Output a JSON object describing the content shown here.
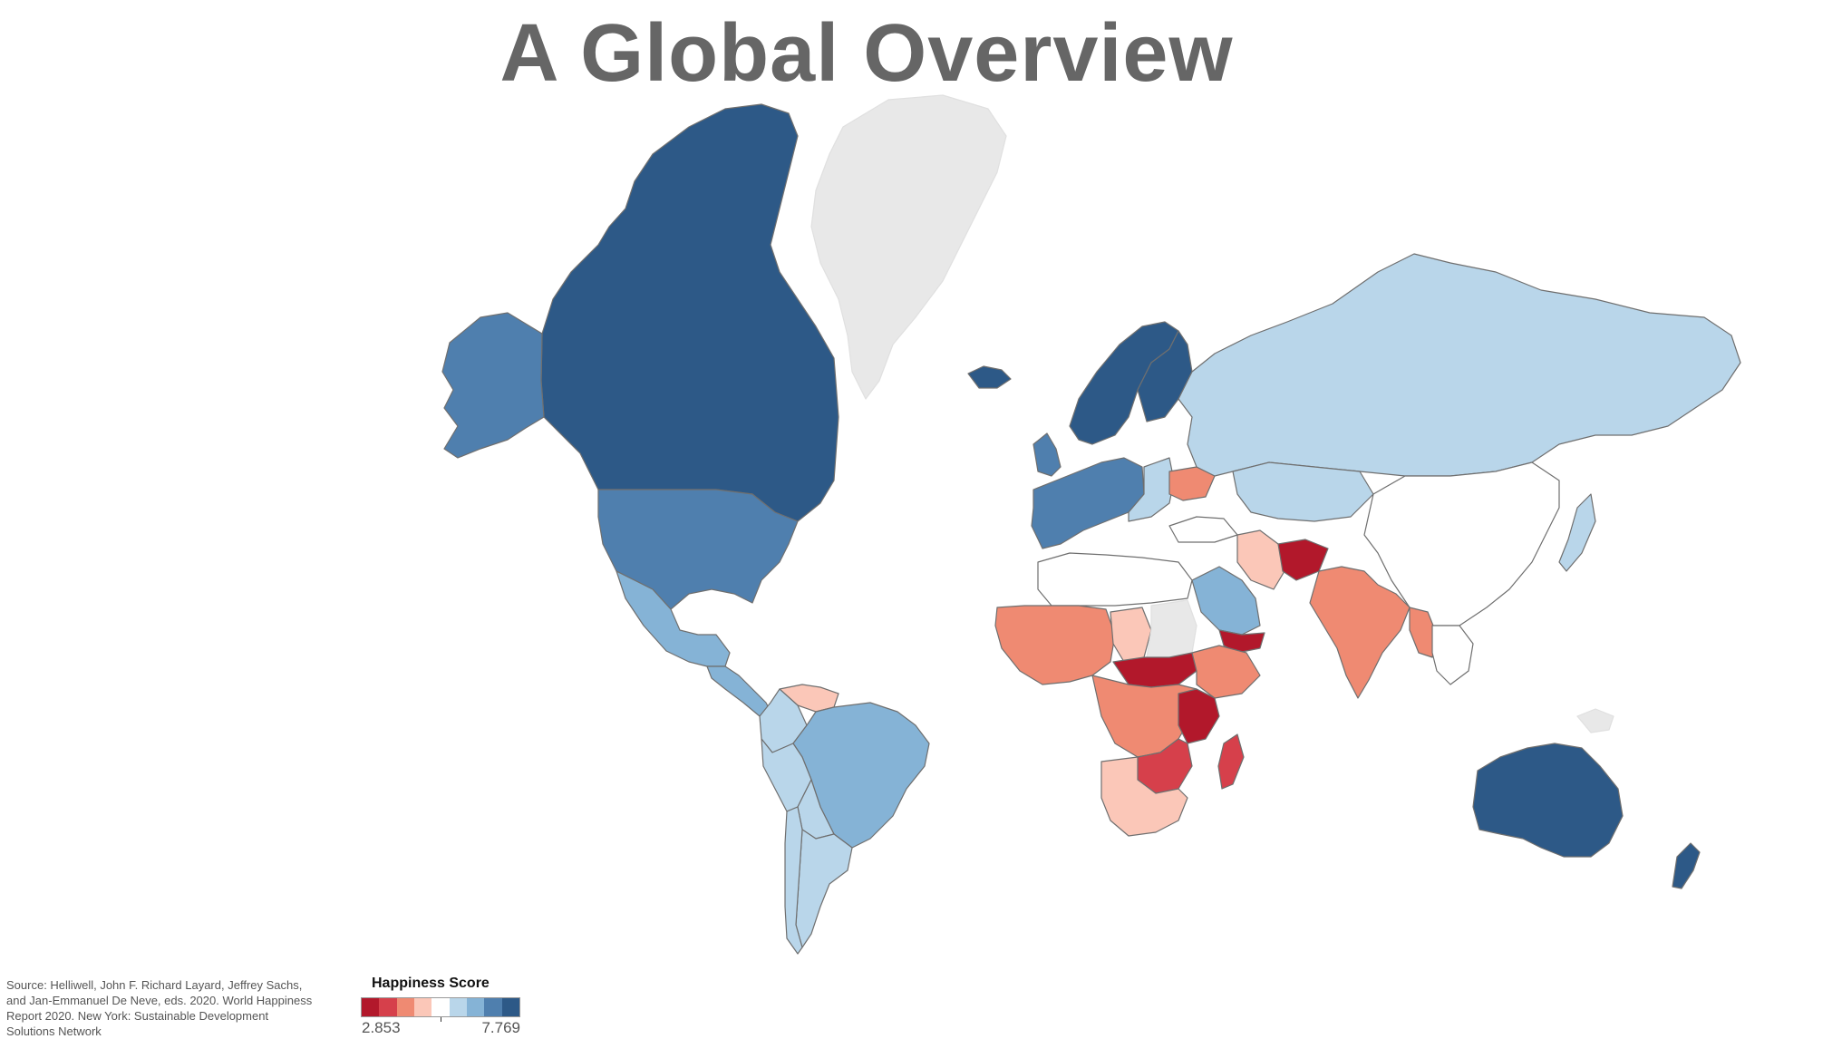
{
  "title": "A Global Overview",
  "source_note": "Source: Helliwell, John F. Richard Layard, Jeffrey Sachs, and Jan-Emmanuel De Neve, eds. 2020. World Happiness Report 2020. New York: Sustainable Development Solutions Network",
  "legend": {
    "title": "Happiness Score",
    "min_label": "2.853",
    "max_label": "7.769",
    "steps": [
      "#b2182b",
      "#d6404b",
      "#ef8a72",
      "#fbc7b8",
      "#ffffff",
      "#b9d6ea",
      "#85b3d6",
      "#4f7fae",
      "#2d5987"
    ]
  },
  "colors": {
    "no_data": "#e8e8e8",
    "border": "#6f6f6f",
    "title": "#666666"
  },
  "regions": [
    {
      "name": "Canada",
      "class": 8
    },
    {
      "name": "Alaska",
      "class": 7
    },
    {
      "name": "United States",
      "class": 7
    },
    {
      "name": "Mexico",
      "class": 6
    },
    {
      "name": "Central America",
      "class": 6
    },
    {
      "name": "Venezuela",
      "class": 3
    },
    {
      "name": "Colombia",
      "class": 5
    },
    {
      "name": "Brazil",
      "class": 6
    },
    {
      "name": "Peru",
      "class": 5
    },
    {
      "name": "Bolivia",
      "class": 5
    },
    {
      "name": "Argentina",
      "class": 5
    },
    {
      "name": "Chile",
      "class": 5
    },
    {
      "name": "Greenland",
      "class": null
    },
    {
      "name": "Iceland",
      "class": 8
    },
    {
      "name": "Scandinavia",
      "class": 8
    },
    {
      "name": "Finland",
      "class": 8
    },
    {
      "name": "United Kingdom",
      "class": 7
    },
    {
      "name": "Western Europe",
      "class": 7
    },
    {
      "name": "Eastern Europe",
      "class": 5
    },
    {
      "name": "Ukraine",
      "class": 2
    },
    {
      "name": "Russia",
      "class": 5
    },
    {
      "name": "Kazakhstan",
      "class": 5
    },
    {
      "name": "China",
      "class": 4
    },
    {
      "name": "Japan",
      "class": 5
    },
    {
      "name": "Turkey",
      "class": 4
    },
    {
      "name": "Iran",
      "class": 3
    },
    {
      "name": "Saudi Arabia",
      "class": 6
    },
    {
      "name": "Yemen",
      "class": 0
    },
    {
      "name": "Afghanistan",
      "class": 0
    },
    {
      "name": "India",
      "class": 2
    },
    {
      "name": "Myanmar",
      "class": 2
    },
    {
      "name": "Southeast Asia",
      "class": 4
    },
    {
      "name": "North Africa",
      "class": 4
    },
    {
      "name": "West Africa",
      "class": 2
    },
    {
      "name": "Central Africa",
      "class": 2
    },
    {
      "name": "Chad",
      "class": 3
    },
    {
      "name": "Sudan",
      "class": null
    },
    {
      "name": "South Sudan",
      "class": 0
    },
    {
      "name": "Ethiopia",
      "class": 2
    },
    {
      "name": "Tanzania",
      "class": 0
    },
    {
      "name": "Zimbabwe",
      "class": 1
    },
    {
      "name": "Madagascar",
      "class": 1
    },
    {
      "name": "Southern Africa",
      "class": 3
    },
    {
      "name": "Australia",
      "class": 8
    },
    {
      "name": "New Zealand",
      "class": 8
    },
    {
      "name": "Papua New Guinea",
      "class": null
    }
  ]
}
